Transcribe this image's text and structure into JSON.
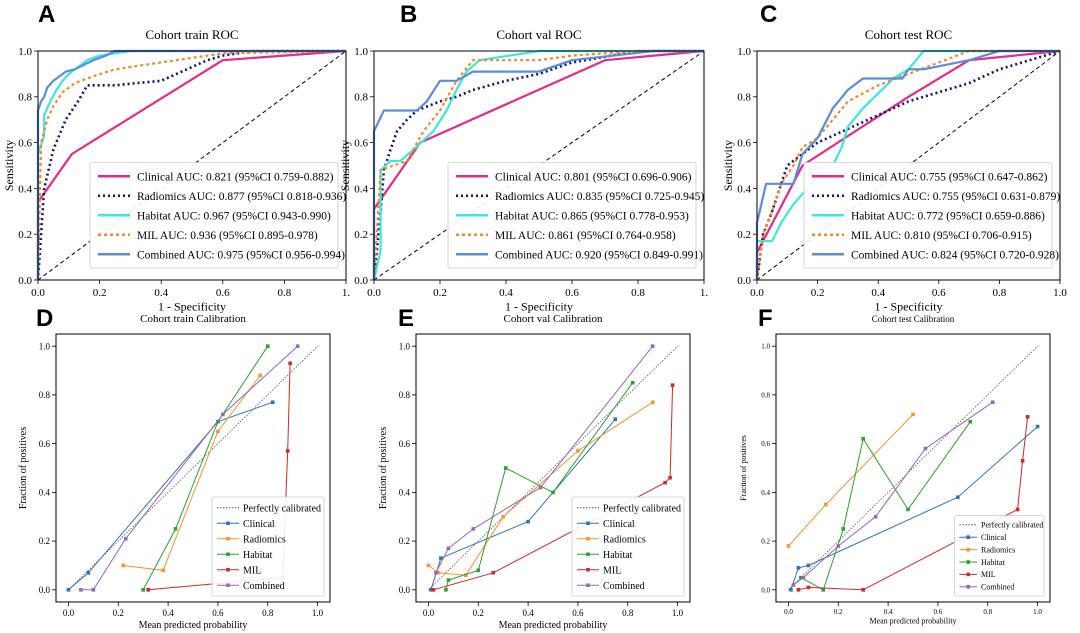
{
  "colors": {
    "clinical": "#e8288a",
    "radiomics": "#14146e",
    "habitat": "#3ae8e0",
    "mil": "#f08a24",
    "combined": "#5b8cdc",
    "cal_clinical": "#2e75b6",
    "cal_radiomics": "#f39530",
    "cal_habitat": "#2ca02c",
    "cal_mil": "#d62728",
    "cal_combined": "#9467bd"
  },
  "chart_data": [
    {
      "type": "line",
      "panel": "A",
      "title": "Cohort train ROC",
      "xlabel": "1 - Specificity",
      "ylabel": "Sensitivity",
      "xlim": [
        0,
        1
      ],
      "ylim": [
        0,
        1
      ],
      "xticks": [
        "0.0",
        "0.2",
        "0.4",
        "0.6",
        "0.8",
        "1."
      ],
      "yticks": [
        "0.0",
        "0.2",
        "0.4",
        "0.6",
        "0.8",
        "1.0"
      ],
      "legend": "bottom-right",
      "series": [
        {
          "name": "Clinical AUC: 0.821 (95%CI 0.759-0.882)",
          "x": [
            0,
            0,
            0.11,
            0.6,
            1
          ],
          "y": [
            0,
            0.34,
            0.55,
            0.96,
            1
          ]
        },
        {
          "name": "Radiomics AUC: 0.877 (95%CI 0.818-0.936)",
          "x": [
            0,
            0.02,
            0.05,
            0.09,
            0.13,
            0.16,
            0.2,
            0.25,
            0.32,
            0.4,
            0.45,
            0.5,
            0.55,
            0.6,
            0.7,
            1
          ],
          "y": [
            0,
            0.4,
            0.57,
            0.7,
            0.78,
            0.85,
            0.85,
            0.85,
            0.86,
            0.87,
            0.9,
            0.93,
            0.96,
            0.98,
            1,
            1
          ]
        },
        {
          "name": "Habitat AUC: 0.967 (95%CI 0.943-0.990)",
          "x": [
            0,
            0,
            0.02,
            0.02,
            0.04,
            0.06,
            0.08,
            0.1,
            0.12,
            0.14,
            0.16,
            0.2,
            0.3,
            1
          ],
          "y": [
            0,
            0.55,
            0.63,
            0.72,
            0.78,
            0.83,
            0.87,
            0.9,
            0.92,
            0.94,
            0.96,
            0.98,
            1,
            1
          ]
        },
        {
          "name": "MIL AUC: 0.936 (95%CI 0.895-0.978)",
          "x": [
            0,
            0.01,
            0.03,
            0.05,
            0.08,
            0.12,
            0.18,
            0.25,
            0.35,
            0.5,
            0.6,
            1
          ],
          "y": [
            0,
            0.6,
            0.7,
            0.76,
            0.82,
            0.86,
            0.89,
            0.92,
            0.94,
            0.97,
            0.99,
            1
          ]
        },
        {
          "name": "Combined AUC: 0.975 (95%CI 0.956-0.994)",
          "x": [
            0,
            0,
            0.01,
            0.02,
            0.03,
            0.05,
            0.07,
            0.09,
            0.12,
            0.15,
            0.18,
            0.22,
            0.25,
            0.3,
            1
          ],
          "y": [
            0,
            0.74,
            0.78,
            0.8,
            0.84,
            0.87,
            0.89,
            0.91,
            0.92,
            0.94,
            0.96,
            0.98,
            1,
            1,
            1
          ]
        }
      ],
      "diagonal": {
        "x": [
          0,
          1
        ],
        "y": [
          0,
          1
        ]
      }
    },
    {
      "type": "line",
      "panel": "B",
      "title": "Cohort val ROC",
      "xlabel": "1 - Specificity",
      "ylabel": "Sensitivity",
      "xlim": [
        0,
        1
      ],
      "ylim": [
        0,
        1
      ],
      "xticks": [
        "0.0",
        "0.2",
        "0.4",
        "0.6",
        "0.8",
        "1."
      ],
      "yticks": [
        "0.0",
        "0.2",
        "0.4",
        "0.6",
        "0.8",
        "1.0"
      ],
      "legend": "bottom-right",
      "series": [
        {
          "name": "Clinical AUC: 0.801 (95%CI 0.696-0.906)",
          "x": [
            0,
            0,
            0.14,
            0.7,
            1
          ],
          "y": [
            0,
            0.31,
            0.6,
            0.96,
            1
          ]
        },
        {
          "name": "Radiomics AUC: 0.835 (95%CI 0.725-0.945)",
          "x": [
            0,
            0.02,
            0.03,
            0.05,
            0.07,
            0.1,
            0.13,
            0.2,
            0.25,
            0.3,
            0.4,
            0.5,
            0.6,
            0.8,
            1
          ],
          "y": [
            0,
            0.3,
            0.48,
            0.57,
            0.65,
            0.7,
            0.74,
            0.78,
            0.8,
            0.83,
            0.87,
            0.9,
            0.95,
            1,
            1
          ]
        },
        {
          "name": "Habitat AUC: 0.865 (95%CI 0.778-0.953)",
          "x": [
            0,
            0.02,
            0.02,
            0.05,
            0.08,
            0.12,
            0.18,
            0.22,
            0.25,
            0.28,
            0.32,
            0.5,
            0.55,
            0.6,
            1
          ],
          "y": [
            0,
            0.13,
            0.48,
            0.52,
            0.52,
            0.57,
            0.65,
            0.74,
            0.83,
            0.91,
            0.96,
            1,
            1,
            1,
            1
          ]
        },
        {
          "name": "MIL AUC: 0.861 (95%CI 0.764-0.958)",
          "x": [
            0,
            0.02,
            0.1,
            0.15,
            0.2,
            0.25,
            0.3,
            0.4,
            0.5,
            0.6,
            0.8,
            1
          ],
          "y": [
            0,
            0.48,
            0.52,
            0.65,
            0.74,
            0.87,
            0.96,
            0.96,
            0.96,
            0.98,
            1,
            1
          ]
        },
        {
          "name": "Combined AUC: 0.920 (95%CI 0.849-0.991)",
          "x": [
            0,
            0,
            0.03,
            0.13,
            0.16,
            0.2,
            0.25,
            0.3,
            0.35,
            0.4,
            0.5,
            0.6,
            0.85,
            1
          ],
          "y": [
            0,
            0.65,
            0.74,
            0.74,
            0.78,
            0.87,
            0.87,
            0.91,
            0.91,
            0.91,
            0.91,
            0.96,
            1,
            1
          ]
        }
      ],
      "diagonal": {
        "x": [
          0,
          1
        ],
        "y": [
          0,
          1
        ]
      }
    },
    {
      "type": "line",
      "panel": "C",
      "title": "Cohort test ROC",
      "xlabel": "1 - Specificity",
      "ylabel": "Sensitivity",
      "xlim": [
        0,
        1
      ],
      "ylim": [
        0,
        1
      ],
      "xticks": [
        "0.0",
        "0.2",
        "0.4",
        "0.6",
        "0.8",
        "1.0"
      ],
      "yticks": [
        "0.0",
        "0.2",
        "0.4",
        "0.6",
        "0.8",
        "1.0"
      ],
      "legend": "bottom-right",
      "series": [
        {
          "name": "Clinical AUC: 0.755 (95%CI 0.647-0.862)",
          "x": [
            0,
            0,
            0.15,
            0.5,
            0.7,
            1
          ],
          "y": [
            0,
            0.12,
            0.5,
            0.8,
            0.96,
            1
          ]
        },
        {
          "name": "Radiomics AUC: 0.755 (95%CI 0.631-0.879)",
          "x": [
            0,
            0.02,
            0.05,
            0.08,
            0.1,
            0.15,
            0.2,
            0.3,
            0.4,
            0.5,
            0.6,
            0.7,
            0.8,
            1
          ],
          "y": [
            0,
            0.2,
            0.3,
            0.42,
            0.5,
            0.55,
            0.6,
            0.66,
            0.72,
            0.78,
            0.82,
            0.86,
            0.92,
            1
          ]
        },
        {
          "name": "Habitat AUC: 0.772 (95%CI 0.659-0.886)",
          "x": [
            0,
            0,
            0.05,
            0.08,
            0.12,
            0.18,
            0.22,
            0.25,
            0.28,
            0.3,
            0.35,
            0.45,
            0.5,
            0.55,
            0.7,
            1
          ],
          "y": [
            0,
            0.17,
            0.17,
            0.25,
            0.33,
            0.42,
            0.5,
            0.5,
            0.58,
            0.67,
            0.75,
            0.88,
            0.92,
            1,
            1,
            1
          ]
        },
        {
          "name": "MIL AUC: 0.810 (95%CI 0.706-0.915)",
          "x": [
            0,
            0.02,
            0.05,
            0.08,
            0.12,
            0.15,
            0.2,
            0.25,
            0.3,
            0.4,
            0.5,
            0.6,
            0.7,
            1
          ],
          "y": [
            0,
            0.2,
            0.3,
            0.42,
            0.5,
            0.58,
            0.62,
            0.7,
            0.78,
            0.85,
            0.9,
            0.95,
            1,
            1
          ]
        },
        {
          "name": "Combined AUC: 0.824 (95%CI 0.720-0.928)",
          "x": [
            0,
            0,
            0.03,
            0.12,
            0.15,
            0.2,
            0.25,
            0.3,
            0.35,
            0.48,
            0.5,
            0.55,
            0.7,
            0.8,
            1
          ],
          "y": [
            0,
            0.25,
            0.42,
            0.42,
            0.55,
            0.62,
            0.75,
            0.83,
            0.88,
            0.88,
            0.92,
            0.92,
            0.96,
            1,
            1
          ]
        }
      ],
      "diagonal": {
        "x": [
          0,
          1
        ],
        "y": [
          0,
          1
        ]
      }
    },
    {
      "type": "line",
      "panel": "D",
      "title": "Cohort train Calibration",
      "xlabel": "Mean predicted probability",
      "ylabel": "Fraction of positives",
      "xlim": [
        -0.05,
        1.05
      ],
      "ylim": [
        -0.05,
        1.05
      ],
      "xticks": [
        "0.0",
        "0.2",
        "0.4",
        "0.6",
        "0.8",
        "1.0"
      ],
      "yticks": [
        "0.0",
        "0.2",
        "0.4",
        "0.6",
        "0.8",
        "1.0"
      ],
      "legend": "lower-right",
      "perfect": {
        "name": "Perfectly calibrated",
        "x": [
          0,
          1
        ],
        "y": [
          0,
          1
        ]
      },
      "series": [
        {
          "name": "Clinical",
          "x": [
            0,
            0.08,
            0.6,
            0.82
          ],
          "y": [
            0,
            0.07,
            0.69,
            0.77
          ]
        },
        {
          "name": "Radiomics",
          "x": [
            0.22,
            0.38,
            0.6,
            0.77
          ],
          "y": [
            0.1,
            0.08,
            0.65,
            0.88
          ]
        },
        {
          "name": "Habitat",
          "x": [
            0.3,
            0.43,
            0.6,
            0.8
          ],
          "y": [
            0,
            0.25,
            0.69,
            1.0
          ]
        },
        {
          "name": "MIL",
          "x": [
            0.32,
            0.86,
            0.88,
            0.89
          ],
          "y": [
            0,
            0.05,
            0.57,
            0.93
          ]
        },
        {
          "name": "Combined",
          "x": [
            0.05,
            0.1,
            0.23,
            0.62,
            0.92
          ],
          "y": [
            0,
            0,
            0.21,
            0.72,
            1.0
          ]
        }
      ]
    },
    {
      "type": "line",
      "panel": "E",
      "title": "Cohort val Calibration",
      "xlabel": "Mean predicted probability",
      "ylabel": "Fraction of positives",
      "xlim": [
        -0.05,
        1.05
      ],
      "ylim": [
        -0.05,
        1.05
      ],
      "xticks": [
        "0.0",
        "0.2",
        "0.4",
        "0.6",
        "0.8",
        "1.0"
      ],
      "yticks": [
        "0.0",
        "0.2",
        "0.4",
        "0.6",
        "0.8",
        "1.0"
      ],
      "legend": "lower-right",
      "perfect": {
        "name": "Perfectly calibrated",
        "x": [
          0,
          1
        ],
        "y": [
          0,
          1
        ]
      },
      "series": [
        {
          "name": "Clinical",
          "x": [
            0.01,
            0.05,
            0.4,
            0.75
          ],
          "y": [
            0,
            0.13,
            0.28,
            0.7
          ]
        },
        {
          "name": "Radiomics",
          "x": [
            0,
            0.04,
            0.15,
            0.3,
            0.6,
            0.9
          ],
          "y": [
            0.1,
            0.07,
            0.06,
            0.3,
            0.57,
            0.77
          ]
        },
        {
          "name": "Habitat",
          "x": [
            0.07,
            0.08,
            0.2,
            0.31,
            0.5,
            0.82
          ],
          "y": [
            0,
            0.04,
            0.08,
            0.5,
            0.4,
            0.85
          ]
        },
        {
          "name": "MIL",
          "x": [
            0.02,
            0.26,
            0.95,
            0.97,
            0.98
          ],
          "y": [
            0,
            0.07,
            0.44,
            0.46,
            0.84
          ]
        },
        {
          "name": "Combined",
          "x": [
            0.03,
            0.08,
            0.18,
            0.45,
            0.9
          ],
          "y": [
            0.07,
            0.17,
            0.25,
            0.42,
            1.0
          ]
        }
      ]
    },
    {
      "type": "line",
      "panel": "F",
      "title": "Cohort test Calibration",
      "xlabel": "Mean predicted probability",
      "ylabel": "Fraction of positives",
      "xlim": [
        -0.05,
        1.05
      ],
      "ylim": [
        -0.05,
        1.05
      ],
      "xticks": [
        "0.0",
        "0.2",
        "0.4",
        "0.6",
        "0.8",
        "1.0"
      ],
      "yticks": [
        "0.0",
        "0.2",
        "0.4",
        "0.6",
        "0.8",
        "1.0"
      ],
      "legend": "lower-right",
      "perfect": {
        "name": "Perfectly calibrated",
        "x": [
          0,
          1
        ],
        "y": [
          0,
          1
        ]
      },
      "series": [
        {
          "name": "Clinical",
          "x": [
            0.01,
            0.04,
            0.08,
            0.68,
            1.0
          ],
          "y": [
            0,
            0.09,
            0.1,
            0.38,
            0.67
          ]
        },
        {
          "name": "Radiomics",
          "x": [
            0,
            0.15,
            0.5
          ],
          "y": [
            0.18,
            0.35,
            0.72
          ]
        },
        {
          "name": "Habitat",
          "x": [
            0.05,
            0.14,
            0.22,
            0.3,
            0.48,
            0.73
          ],
          "y": [
            0.05,
            0,
            0.25,
            0.62,
            0.33,
            0.69
          ]
        },
        {
          "name": "MIL",
          "x": [
            0.04,
            0.08,
            0.3,
            0.92,
            0.94,
            0.96
          ],
          "y": [
            0,
            0.01,
            0,
            0.33,
            0.53,
            0.71
          ]
        },
        {
          "name": "Combined",
          "x": [
            0.02,
            0.06,
            0.2,
            0.35,
            0.55,
            0.82
          ],
          "y": [
            0.02,
            0.05,
            0.18,
            0.3,
            0.58,
            0.77
          ]
        }
      ]
    }
  ]
}
